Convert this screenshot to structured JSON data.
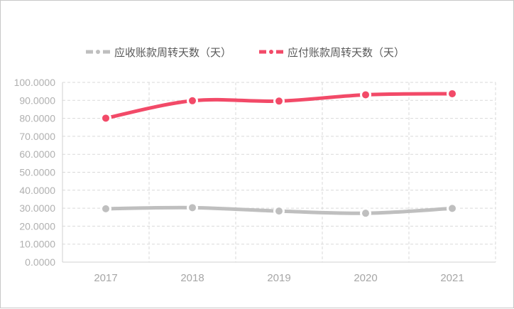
{
  "chart_data": {
    "type": "line",
    "title": "",
    "categories": [
      "2017",
      "2018",
      "2019",
      "2020",
      "2021"
    ],
    "series": [
      {
        "name": "应收账款周转天数（天）",
        "color": "#bfbfbf",
        "values": [
          29.7,
          30.3,
          28.4,
          27.2,
          29.9
        ]
      },
      {
        "name": "应付账款周转天数（天）",
        "color": "#f24a68",
        "values": [
          80.1,
          89.8,
          89.6,
          93.1,
          93.7
        ]
      }
    ],
    "xlabel": "",
    "ylabel": "",
    "ylim": [
      0,
      100
    ],
    "yticks": [
      "0.0000",
      "10.0000",
      "20.0000",
      "30.0000",
      "40.0000",
      "50.0000",
      "60.0000",
      "70.0000",
      "80.0000",
      "90.0000",
      "100.0000"
    ],
    "grid": true,
    "legend_position": "top",
    "smooth": true
  },
  "legend": {
    "items": [
      {
        "label": "应收账款周转天数（天）",
        "color": "#bfbfbf"
      },
      {
        "label": "应付账款周转天数（天）",
        "color": "#f24a68"
      }
    ]
  }
}
